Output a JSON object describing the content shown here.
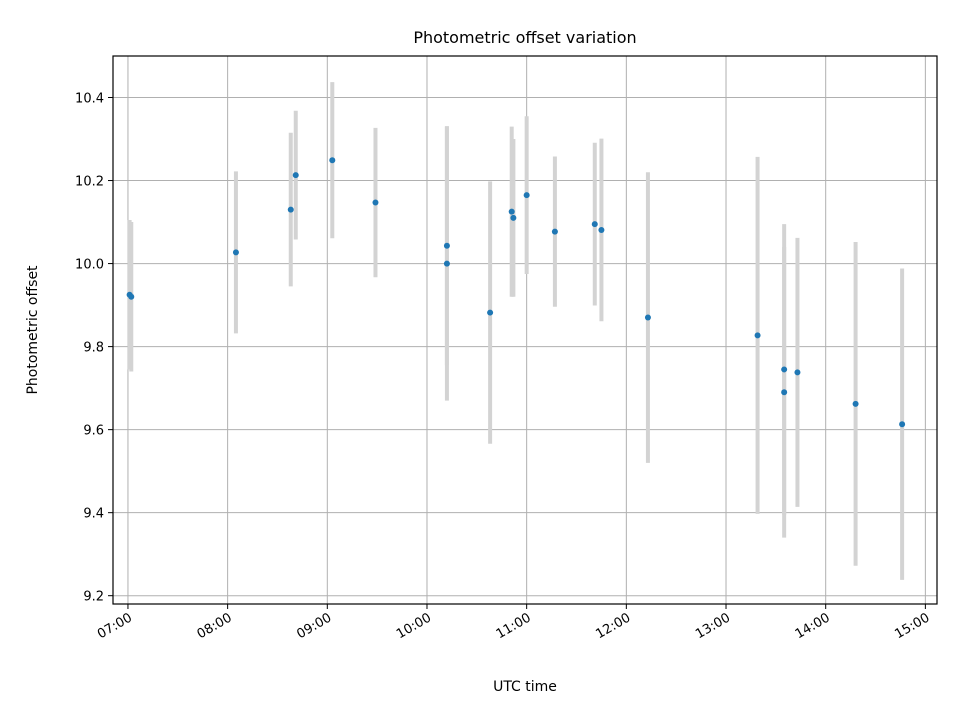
{
  "chart_data": {
    "type": "scatter",
    "title": "Photometric offset variation",
    "xlabel": "UTC time",
    "ylabel": "Photometric offset",
    "xlim": [
      "06:51",
      "15:07"
    ],
    "ylim": [
      9.18,
      10.5
    ],
    "x_ticks": [
      "07:00",
      "08:00",
      "09:00",
      "10:00",
      "11:00",
      "12:00",
      "13:00",
      "14:00",
      "15:00"
    ],
    "y_ticks": [
      9.2,
      9.4,
      9.6,
      9.8,
      10.0,
      10.2,
      10.4
    ],
    "grid": true,
    "colors": {
      "points": "#1f77b4",
      "error_bars": "#d3d3d3",
      "grid": "#b0b0b0"
    },
    "points": [
      {
        "x": "07:01",
        "y": 9.925,
        "yerr": 0.18
      },
      {
        "x": "07:02",
        "y": 9.92,
        "yerr": 0.18
      },
      {
        "x": "08:05",
        "y": 10.027,
        "yerr": 0.195
      },
      {
        "x": "08:38",
        "y": 10.13,
        "yerr": 0.185
      },
      {
        "x": "08:41",
        "y": 10.213,
        "yerr": 0.155
      },
      {
        "x": "09:03",
        "y": 10.249,
        "yerr": 0.188
      },
      {
        "x": "09:29",
        "y": 10.147,
        "yerr": 0.18
      },
      {
        "x": "10:12",
        "y": 10.043,
        "yerr": 0.288
      },
      {
        "x": "10:12",
        "y": 10.0,
        "yerr": 0.33
      },
      {
        "x": "10:38",
        "y": 9.882,
        "yerr": 0.316
      },
      {
        "x": "10:51",
        "y": 10.125,
        "yerr": 0.205
      },
      {
        "x": "10:52",
        "y": 10.11,
        "yerr": 0.19
      },
      {
        "x": "11:00",
        "y": 10.165,
        "yerr": 0.19
      },
      {
        "x": "11:17",
        "y": 10.077,
        "yerr": 0.181
      },
      {
        "x": "11:41",
        "y": 10.095,
        "yerr": 0.196
      },
      {
        "x": "11:45",
        "y": 10.081,
        "yerr": 0.22
      },
      {
        "x": "12:13",
        "y": 9.87,
        "yerr": 0.35
      },
      {
        "x": "13:19",
        "y": 9.827,
        "yerr": 0.43
      },
      {
        "x": "13:35",
        "y": 9.745,
        "yerr": 0.35
      },
      {
        "x": "13:35",
        "y": 9.69,
        "yerr": 0.35
      },
      {
        "x": "13:43",
        "y": 9.738,
        "yerr": 0.324
      },
      {
        "x": "14:18",
        "y": 9.662,
        "yerr": 0.39
      },
      {
        "x": "14:46",
        "y": 9.613,
        "yerr": 0.375
      }
    ]
  }
}
